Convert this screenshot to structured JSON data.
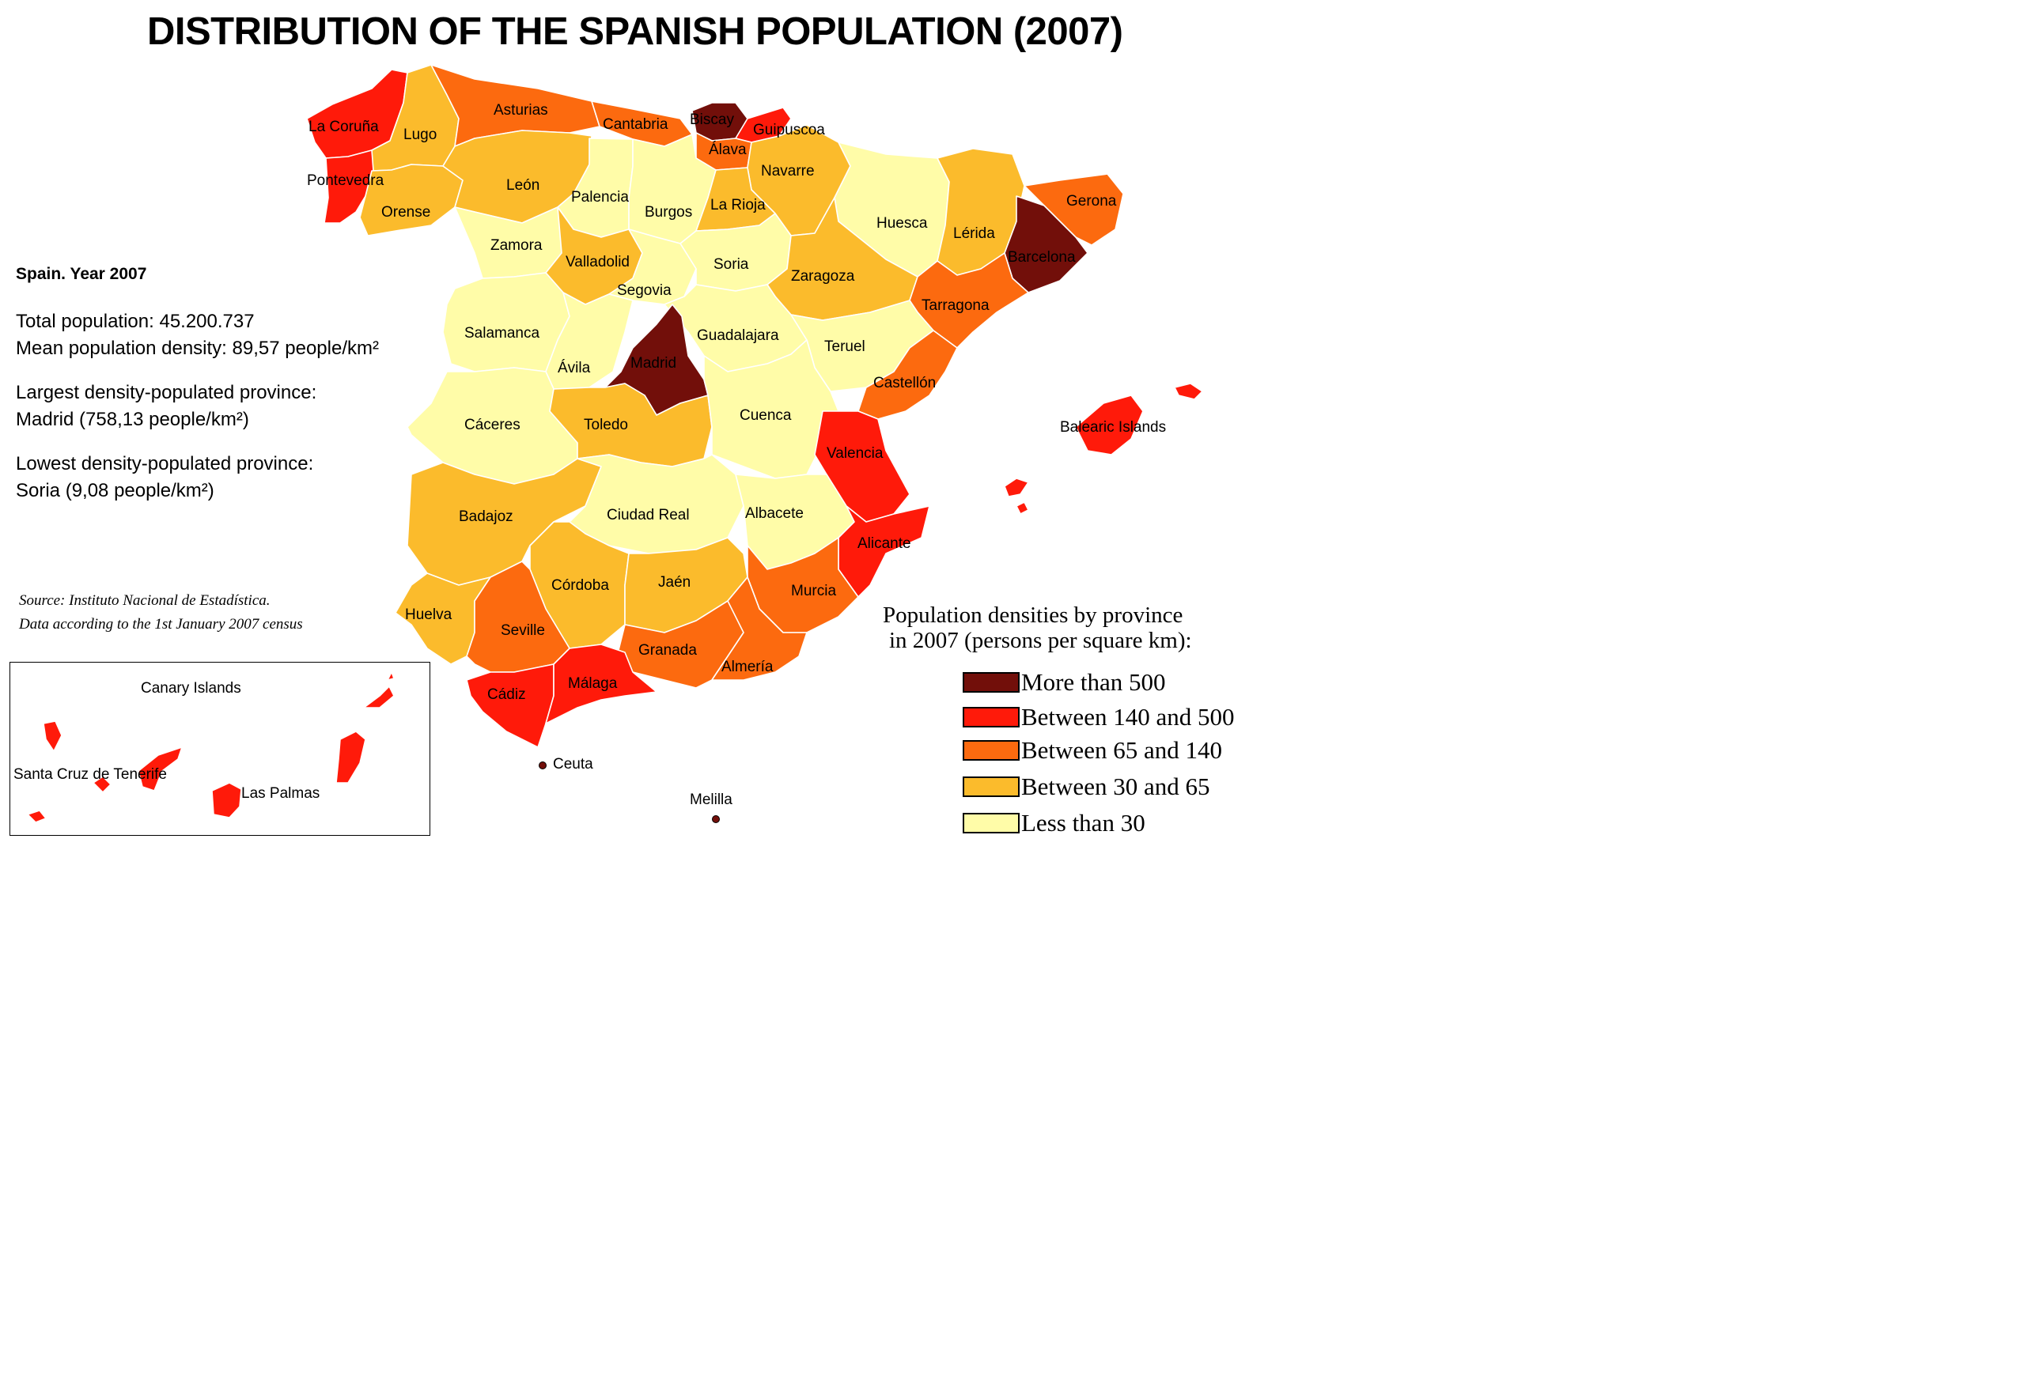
{
  "title": "DISTRIBUTION OF THE SPANISH POPULATION (2007)",
  "info": {
    "heading": "Spain. Year 2007",
    "total_population": "Total population: 45.200.737",
    "mean_density": "Mean population density: 89,57 people/km²",
    "largest_label": "Largest density-populated province:",
    "largest_value": "Madrid (758,13 people/km²)",
    "lowest_label": "Lowest density-populated province:",
    "lowest_value": "Soria (9,08 people/km²)"
  },
  "source": {
    "line1": "Source: Instituto Nacional de Estadística.",
    "line2": "Data according to the 1st January 2007 census"
  },
  "legend": {
    "title_line1": "Population densities by province",
    "title_line2": "in 2007 (persons per square km):",
    "items": [
      {
        "label": "More than 500",
        "color": "#720F0A"
      },
      {
        "label": "Between 140 and 500",
        "color": "#FF1A0A"
      },
      {
        "label": "Between 65 and 140",
        "color": "#FC6A0F"
      },
      {
        "label": "Between 30 and 65",
        "color": "#FBBB2C"
      },
      {
        "label": "Less than 30",
        "color": "#FFFCA8"
      }
    ]
  },
  "inset": {
    "title": "Canary Islands",
    "provinces": [
      {
        "name": "Santa Cruz de Tenerife",
        "class": 1
      },
      {
        "name": "Las Palmas",
        "class": 1
      }
    ]
  },
  "cities": [
    "Ceuta",
    "Melilla"
  ],
  "provinces": [
    {
      "name": "La Coruña",
      "class": 1
    },
    {
      "name": "Lugo",
      "class": 3
    },
    {
      "name": "Asturias",
      "class": 2
    },
    {
      "name": "Cantabria",
      "class": 2
    },
    {
      "name": "Biscay",
      "class": 0
    },
    {
      "name": "Guipuscoa",
      "class": 1
    },
    {
      "name": "Álava",
      "class": 2
    },
    {
      "name": "Navarre",
      "class": 3
    },
    {
      "name": "Pontevedra",
      "class": 1
    },
    {
      "name": "Orense",
      "class": 3
    },
    {
      "name": "León",
      "class": 3
    },
    {
      "name": "Palencia",
      "class": 4
    },
    {
      "name": "Burgos",
      "class": 4
    },
    {
      "name": "La Rioja",
      "class": 3
    },
    {
      "name": "Huesca",
      "class": 4
    },
    {
      "name": "Lérida",
      "class": 3
    },
    {
      "name": "Gerona",
      "class": 2
    },
    {
      "name": "Barcelona",
      "class": 0
    },
    {
      "name": "Zamora",
      "class": 4
    },
    {
      "name": "Valladolid",
      "class": 3
    },
    {
      "name": "Soria",
      "class": 4
    },
    {
      "name": "Zaragoza",
      "class": 3
    },
    {
      "name": "Segovia",
      "class": 4
    },
    {
      "name": "Tarragona",
      "class": 2
    },
    {
      "name": "Salamanca",
      "class": 4
    },
    {
      "name": "Guadalajara",
      "class": 4
    },
    {
      "name": "Teruel",
      "class": 4
    },
    {
      "name": "Ávila",
      "class": 4
    },
    {
      "name": "Madrid",
      "class": 0
    },
    {
      "name": "Castellón",
      "class": 2
    },
    {
      "name": "Cáceres",
      "class": 4
    },
    {
      "name": "Toledo",
      "class": 3
    },
    {
      "name": "Cuenca",
      "class": 4
    },
    {
      "name": "Valencia",
      "class": 1
    },
    {
      "name": "Balearic Islands",
      "class": 1
    },
    {
      "name": "Badajoz",
      "class": 3
    },
    {
      "name": "Ciudad Real",
      "class": 4
    },
    {
      "name": "Albacete",
      "class": 4
    },
    {
      "name": "Alicante",
      "class": 1
    },
    {
      "name": "Córdoba",
      "class": 3
    },
    {
      "name": "Jaén",
      "class": 3
    },
    {
      "name": "Murcia",
      "class": 2
    },
    {
      "name": "Huelva",
      "class": 3
    },
    {
      "name": "Seville",
      "class": 2
    },
    {
      "name": "Granada",
      "class": 2
    },
    {
      "name": "Almería",
      "class": 2
    },
    {
      "name": "Cádiz",
      "class": 1
    },
    {
      "name": "Málaga",
      "class": 1
    }
  ]
}
